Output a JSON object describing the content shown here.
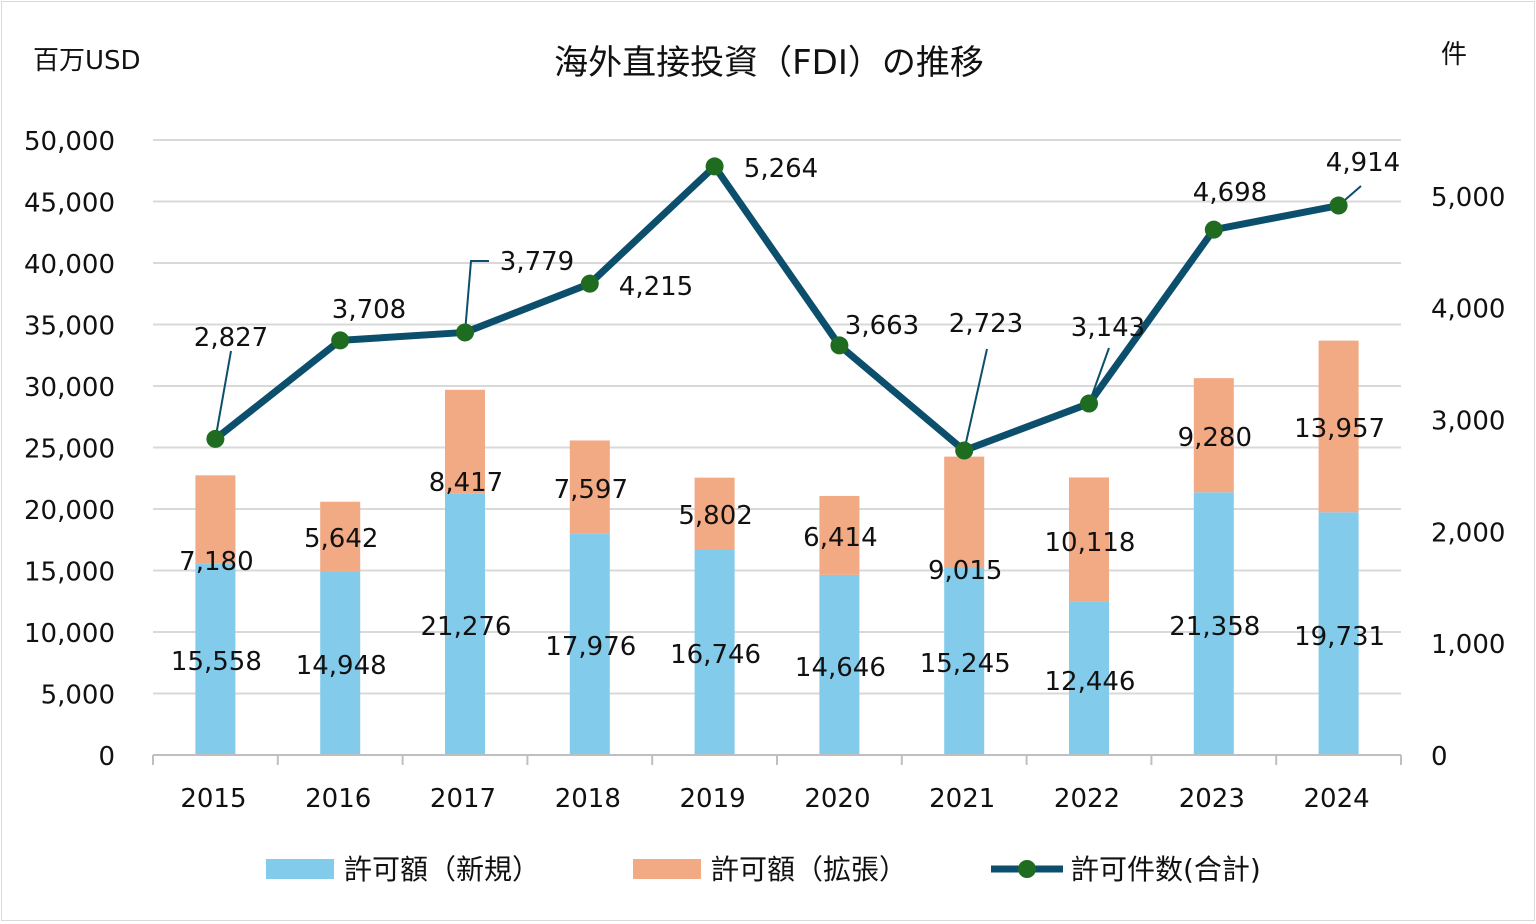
{
  "chart_data": {
    "type": "bar+line",
    "title": "海外直接投資（FDI）の推移",
    "ylabel_left": "百万USD",
    "ylabel_right": "件",
    "ylim_left": [
      0,
      50000
    ],
    "yticks_left": [
      "0",
      "5,000",
      "10,000",
      "15,000",
      "20,000",
      "25,000",
      "30,000",
      "35,000",
      "40,000",
      "45,000",
      "50,000"
    ],
    "ylim_right": [
      0,
      5500
    ],
    "yticks_right": [
      "0",
      "1,000",
      "2,000",
      "3,000",
      "4,000",
      "5,000"
    ],
    "grid": true,
    "legend_position": "bottom",
    "categories": [
      "2015",
      "2016",
      "2017",
      "2018",
      "2019",
      "2020",
      "2021",
      "2022",
      "2023",
      "2024"
    ],
    "series": [
      {
        "name": "許可額（新規）",
        "type": "stacked-bar",
        "axis": "left",
        "color": "#83CBEB",
        "values": [
          15558,
          14948,
          21276,
          17976,
          16746,
          14646,
          15245,
          12446,
          21358,
          19731
        ],
        "labels": [
          "15,558",
          "14,948",
          "21,276",
          "17,976",
          "16,746",
          "14,646",
          "15,245",
          "12,446",
          "21,358",
          "19,731"
        ]
      },
      {
        "name": "許可額（拡張）",
        "type": "stacked-bar",
        "axis": "left",
        "color": "#F2AA84",
        "values": [
          7180,
          5642,
          8417,
          7597,
          5802,
          6414,
          9015,
          10118,
          9280,
          13957
        ],
        "labels": [
          "7,180",
          "5,642",
          "8,417",
          "7,597",
          "5,802",
          "6,414",
          "9,015",
          "10,118",
          "9,280",
          "13,957"
        ]
      },
      {
        "name": "許可件数(合計)",
        "type": "line",
        "axis": "right",
        "color": "#0B4F6C",
        "marker_color": "#1F6B1F",
        "values": [
          2827,
          3708,
          3779,
          4215,
          5264,
          3663,
          2723,
          3143,
          4698,
          4914
        ],
        "labels": [
          "2,827",
          "3,708",
          "3,779",
          "4,215",
          "5,264",
          "3,663",
          "2,723",
          "3,143",
          "4,698",
          "4,914"
        ]
      }
    ]
  }
}
